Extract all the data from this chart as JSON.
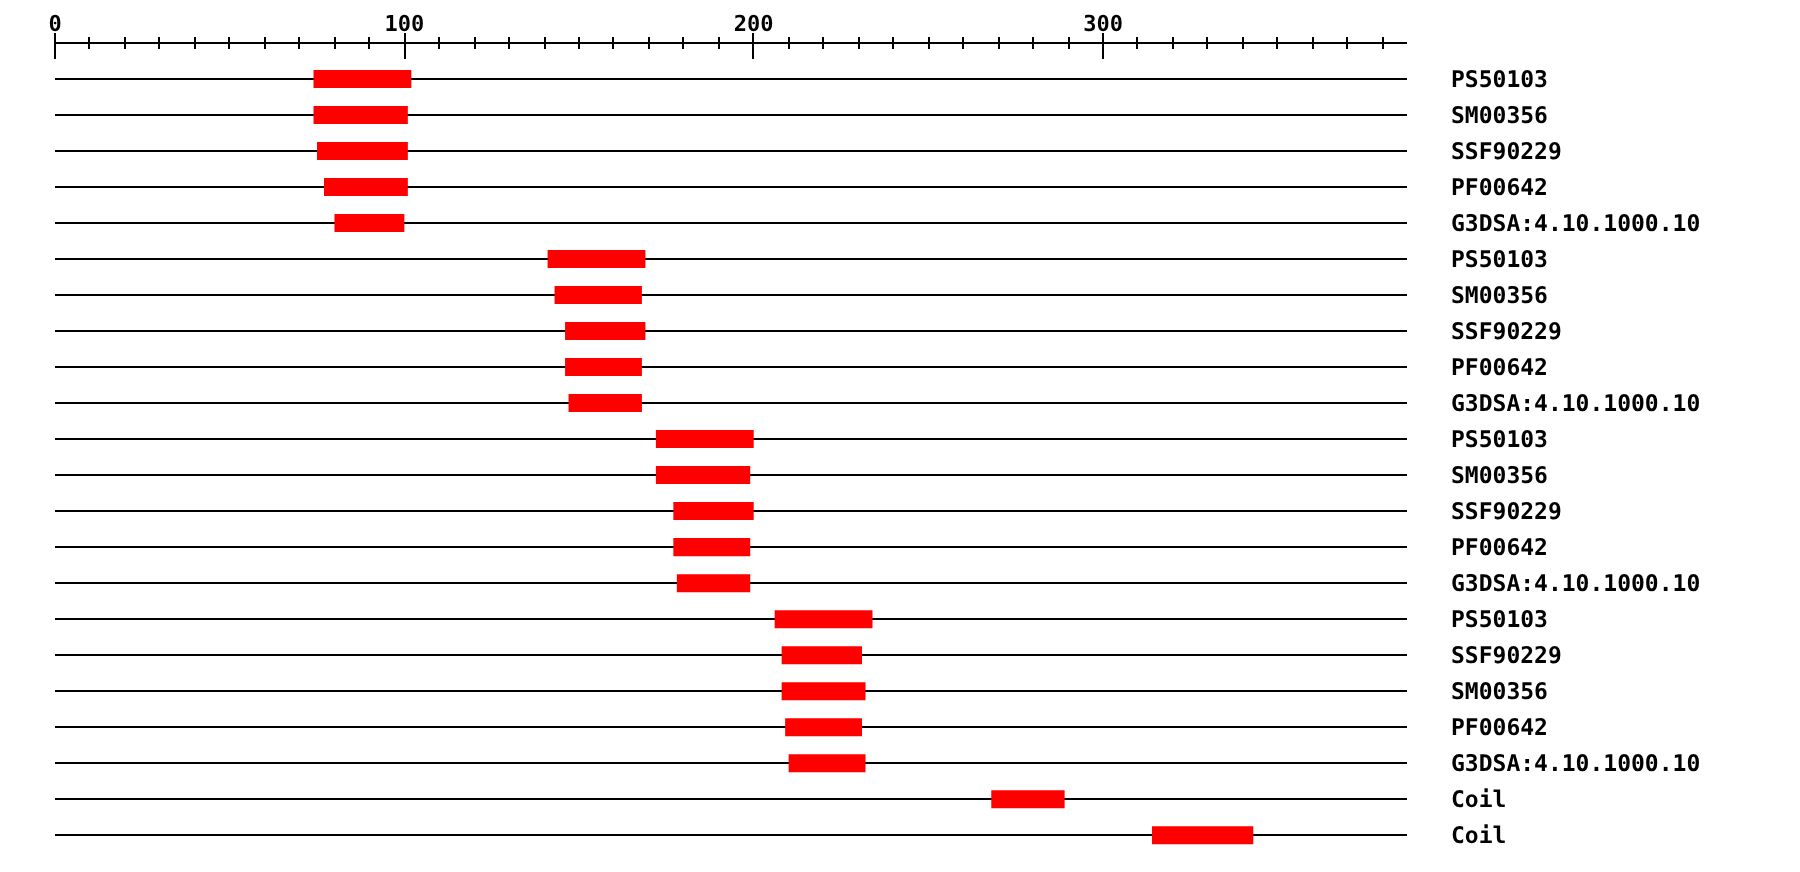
{
  "chart_data": {
    "type": "bar",
    "orientation": "horizontal",
    "categories": [
      "PS50103",
      "SM00356",
      "SSF90229",
      "PF00642",
      "G3DSA:4.10.1000.10",
      "PS50103",
      "SM00356",
      "SSF90229",
      "PF00642",
      "G3DSA:4.10.1000.10",
      "PS50103",
      "SM00356",
      "SSF90229",
      "PF00642",
      "G3DSA:4.10.1000.10",
      "PS50103",
      "SSF90229",
      "SM00356",
      "PF00642",
      "G3DSA:4.10.1000.10",
      "Coil",
      "Coil"
    ],
    "base": [
      74,
      74,
      75,
      77,
      80,
      141,
      143,
      146,
      146,
      147,
      172,
      172,
      177,
      177,
      178,
      206,
      208,
      208,
      209,
      210,
      268,
      314
    ],
    "values": [
      28,
      27,
      26,
      24,
      20,
      28,
      25,
      23,
      22,
      21,
      28,
      27,
      23,
      22,
      21,
      28,
      23,
      24,
      22,
      22,
      21,
      29
    ],
    "color": "#ff0000",
    "xlim": [
      0,
      387
    ],
    "xticks": [
      0,
      {
        "value": 10,
        "label": null
      },
      {
        "value": 20,
        "label": null
      },
      {
        "value": 30,
        "label": null
      },
      {
        "value": 40,
        "label": null
      },
      {
        "value": 50,
        "label": null
      },
      {
        "value": 60,
        "label": null
      },
      {
        "value": 70,
        "label": null
      },
      {
        "value": 80,
        "label": null
      },
      {
        "value": 90,
        "label": null
      },
      100,
      {
        "value": 110,
        "label": null
      },
      {
        "value": 120,
        "label": null
      },
      {
        "value": 130,
        "label": null
      },
      {
        "value": 140,
        "label": null
      },
      {
        "value": 150,
        "label": null
      },
      {
        "value": 160,
        "label": null
      },
      {
        "value": 170,
        "label": null
      },
      {
        "value": 180,
        "label": null
      },
      {
        "value": 190,
        "label": null
      },
      200,
      {
        "value": 210,
        "label": null
      },
      {
        "value": 220,
        "label": null
      },
      {
        "value": 230,
        "label": null
      },
      {
        "value": 240,
        "label": null
      },
      {
        "value": 250,
        "label": null
      },
      {
        "value": 260,
        "label": null
      },
      {
        "value": 270,
        "label": null
      },
      {
        "value": 280,
        "label": null
      },
      {
        "value": 290,
        "label": null
      },
      300,
      {
        "value": 310,
        "label": null
      },
      {
        "value": 320,
        "label": null
      },
      {
        "value": 330,
        "label": null
      },
      {
        "value": 340,
        "label": null
      },
      {
        "value": 350,
        "label": null
      },
      {
        "value": 360,
        "label": null
      },
      {
        "value": 370,
        "label": null
      },
      {
        "value": 380,
        "label": null
      }
    ],
    "grid": "y"
  }
}
